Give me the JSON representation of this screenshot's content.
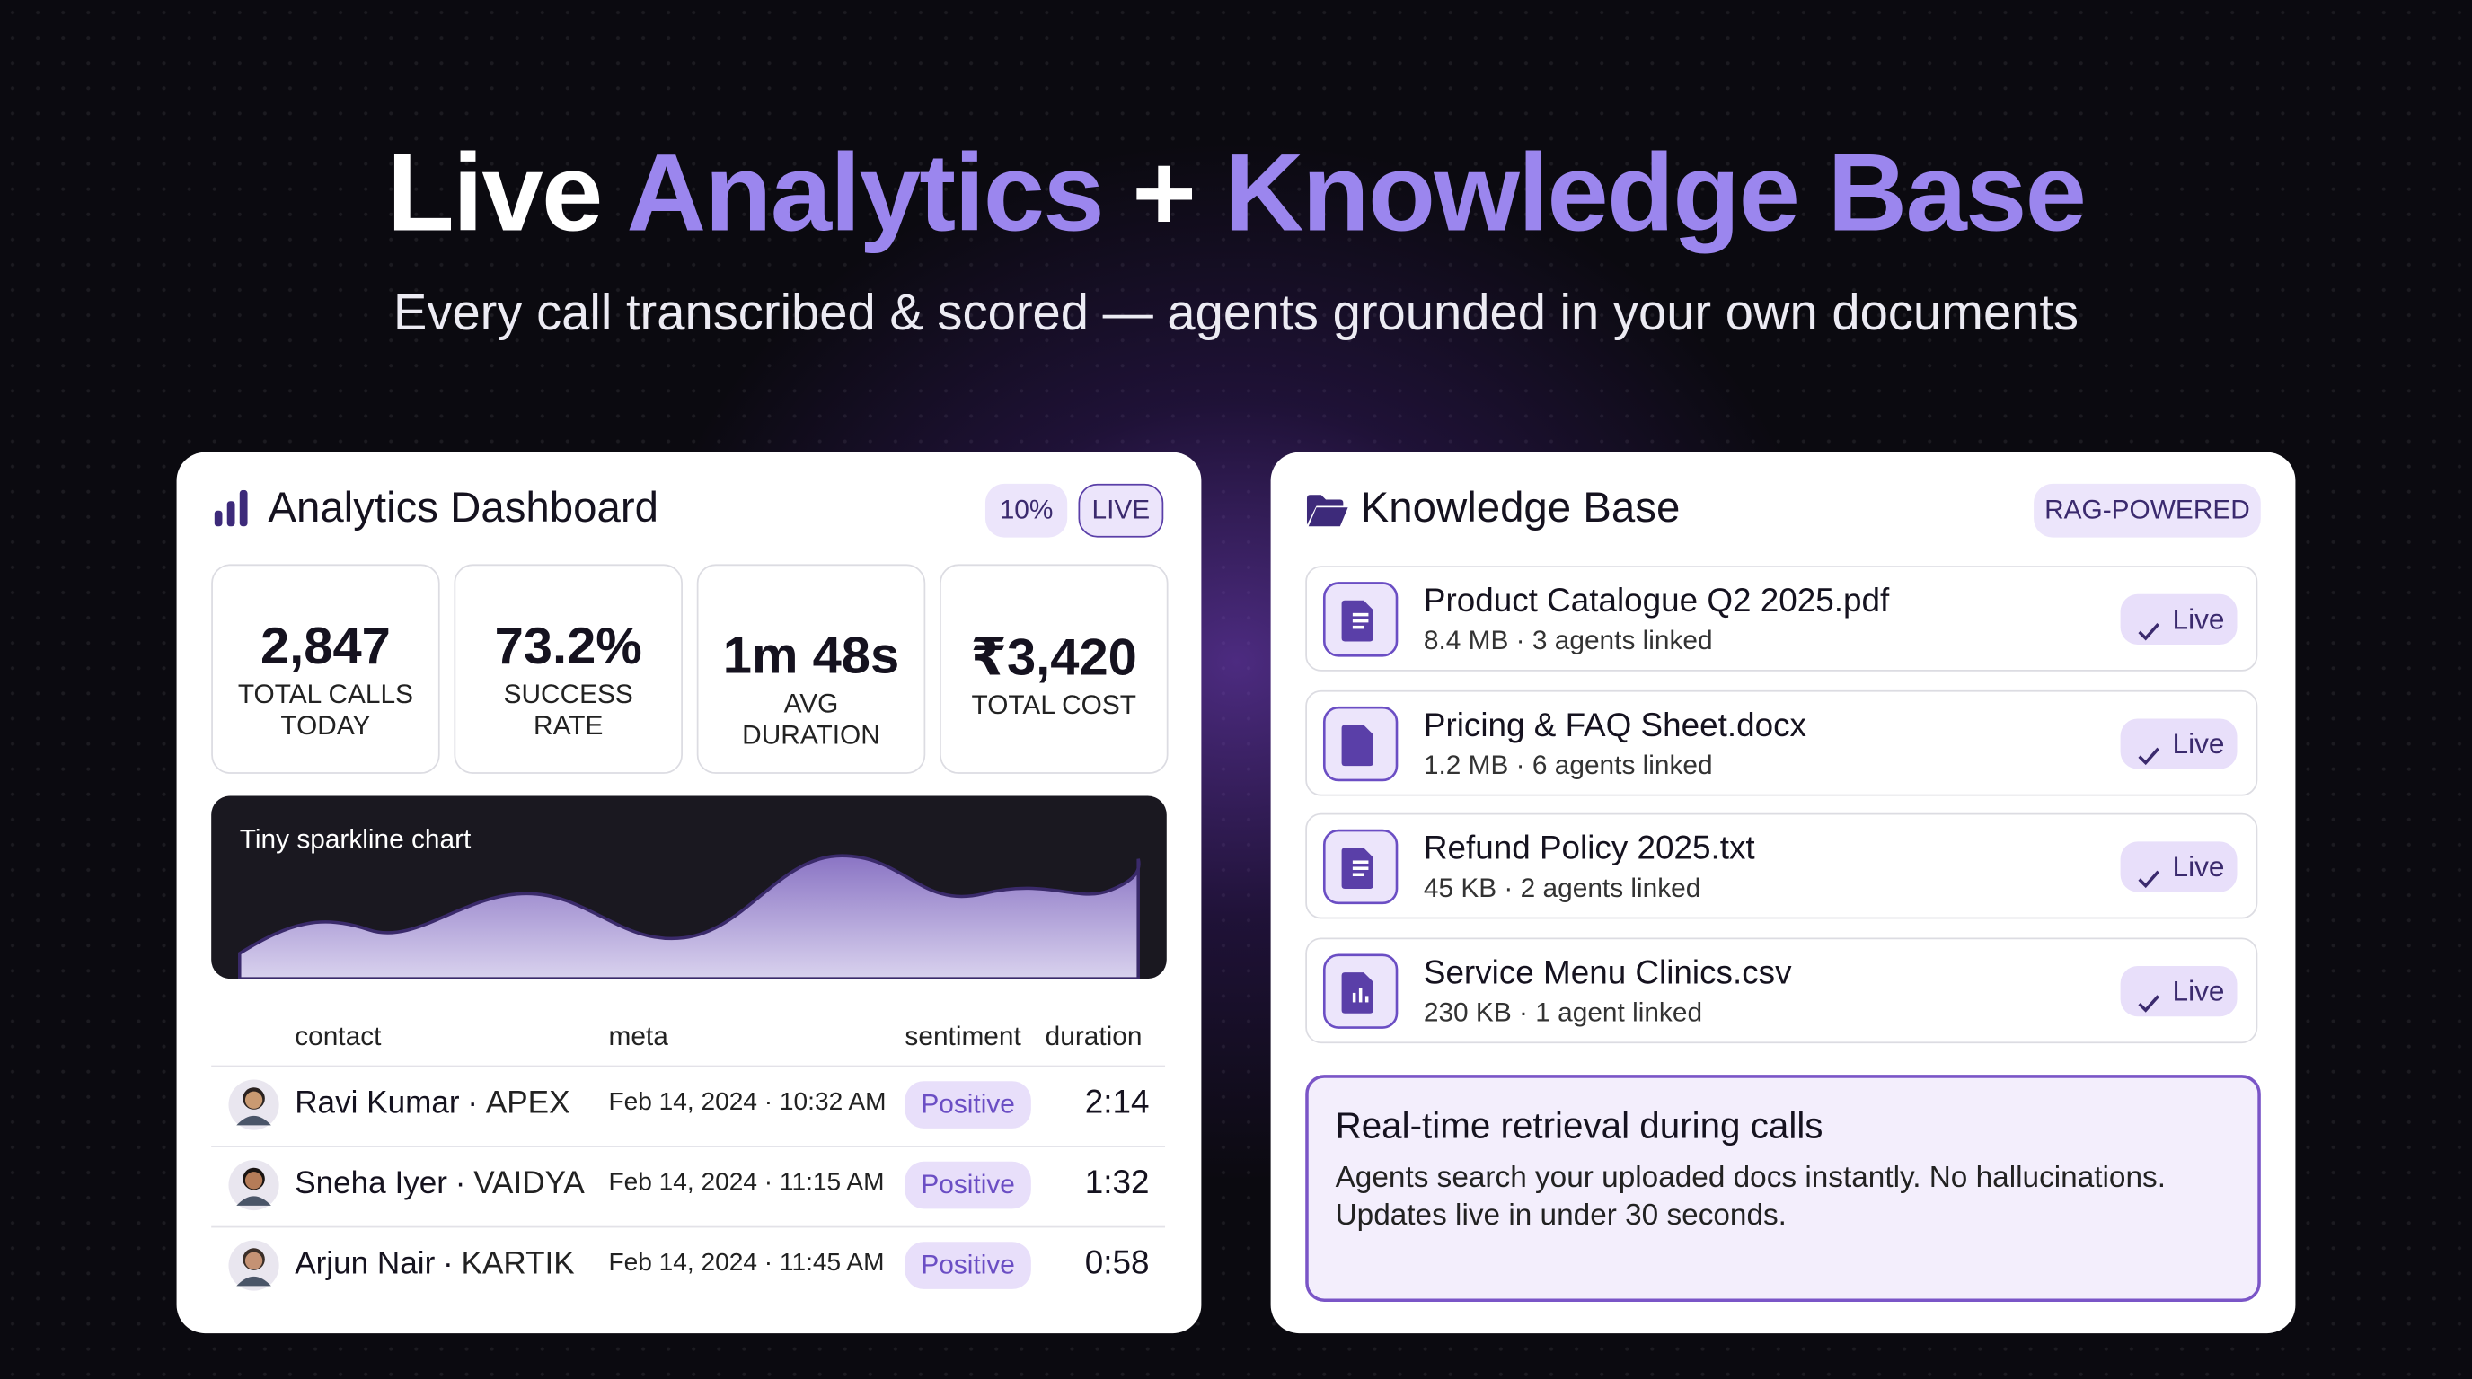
{
  "header": {
    "title_parts": [
      "Live",
      "Analytics",
      "+",
      "Knowledge Base"
    ],
    "subtitle": "Every call transcribed & scored — agents grounded in your own documents"
  },
  "analytics": {
    "title": "Analytics Dashboard",
    "badges": [
      "10%",
      "LIVE"
    ],
    "stats": [
      {
        "value": "2,847",
        "label": "TOTAL CALLS TODAY"
      },
      {
        "value": "73.2%",
        "label": "SUCCESS RATE"
      },
      {
        "value": "1m 48s",
        "label": "AVG DURATION"
      },
      {
        "value": "₹3,420",
        "label": "TOTAL COST"
      }
    ],
    "sparkline_label": "Tiny sparkline chart",
    "columns": [
      "contact",
      "meta",
      "sentiment",
      "duration"
    ],
    "separator": "·",
    "rows": [
      {
        "name": "Ravi Kumar",
        "org": "APEX",
        "meta": "Feb 14, 2024 · 10:32 AM",
        "sentiment": "Positive",
        "duration": "2:14"
      },
      {
        "name": "Sneha Iyer",
        "org": "VAIDYA",
        "meta": "Feb 14, 2024 · 11:15 AM",
        "sentiment": "Positive",
        "duration": "1:32"
      },
      {
        "name": "Arjun Nair",
        "org": "KARTIK",
        "meta": "Feb 14, 2024 · 11:45 AM",
        "sentiment": "Positive",
        "duration": "0:58"
      }
    ]
  },
  "knowledge": {
    "title": "Knowledge Base",
    "badge": "RAG-POWERED",
    "files": [
      {
        "name": "Product Catalogue Q2 2025.pdf",
        "meta": "8.4 MB · 3 agents linked",
        "status": "Live"
      },
      {
        "name": "Pricing & FAQ Sheet.docx",
        "meta": "1.2 MB · 6 agents linked",
        "status": "Live"
      },
      {
        "name": "Refund Policy 2025.txt",
        "meta": "45 KB · 2 agents linked",
        "status": "Live"
      },
      {
        "name": "Service Menu Clinics.csv",
        "meta": "230 KB · 1 agent linked",
        "status": "Live"
      }
    ],
    "note": {
      "title": "Real-time retrieval during calls",
      "body": "Agents search your uploaded docs instantly. No hallucinations. Updates live in under 30 seconds."
    }
  }
}
